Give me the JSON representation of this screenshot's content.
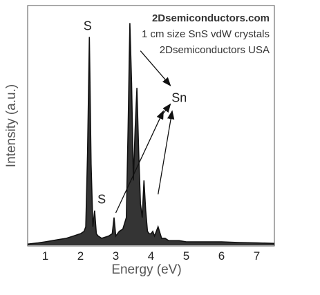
{
  "chart_data": {
    "type": "line",
    "title": "",
    "annotations_text": [
      "2Dsemiconductors.com",
      "1 cm size SnS vdW crystals",
      "2Dsemiconductors USA"
    ],
    "xlabel": "Energy (eV)",
    "ylabel": "Intensity (a.u.)",
    "xlim": [
      0.5,
      7.5
    ],
    "ylim": [
      0,
      100
    ],
    "xticks": [
      1,
      2,
      3,
      4,
      5,
      6,
      7
    ],
    "grid": false,
    "series": [
      {
        "x": [
          0.5,
          0.8,
          1.0,
          1.2,
          1.4,
          1.6,
          1.8,
          1.9,
          2.0,
          2.1,
          2.15,
          2.2,
          2.25,
          2.3,
          2.35,
          2.4,
          2.45,
          2.5,
          2.6,
          2.7,
          2.8,
          2.9,
          2.95,
          3.0,
          3.05,
          3.1,
          3.2,
          3.3,
          3.35,
          3.4,
          3.45,
          3.5,
          3.55,
          3.6,
          3.65,
          3.7,
          3.75,
          3.8,
          3.85,
          3.9,
          3.95,
          4.0,
          4.05,
          4.1,
          4.2,
          4.3,
          4.4,
          4.5,
          4.6,
          4.8,
          5.0,
          5.5,
          6.0,
          6.5,
          7.0,
          7.5
        ],
        "values": [
          0.5,
          1,
          1.5,
          2,
          2.5,
          3,
          4,
          4.5,
          5,
          6,
          8,
          40,
          90,
          35,
          8,
          15,
          5,
          4,
          3,
          3.5,
          4,
          5,
          12,
          4,
          5,
          6,
          7,
          12,
          50,
          96,
          70,
          28,
          50,
          68,
          40,
          18,
          12,
          28,
          15,
          6,
          5,
          5,
          6,
          4,
          8,
          3,
          3,
          2,
          2,
          2,
          1.5,
          1.5,
          1.5,
          1.2,
          1,
          0.8
        ]
      }
    ],
    "peak_labels": [
      {
        "text": "S",
        "x": 2.2,
        "y": 93
      },
      {
        "text": "S",
        "x": 2.6,
        "y": 18
      },
      {
        "text": "Sn",
        "x": 4.8,
        "y": 62
      }
    ],
    "arrows": [
      {
        "from": [
          3.7,
          84
        ],
        "to": [
          4.55,
          69
        ]
      },
      {
        "from": [
          4.3,
          56
        ],
        "to": [
          4.55,
          61
        ]
      },
      {
        "from": [
          3.0,
          14
        ],
        "to": [
          4.35,
          58
        ]
      },
      {
        "from": [
          4.2,
          22
        ],
        "to": [
          4.6,
          58
        ]
      }
    ]
  }
}
